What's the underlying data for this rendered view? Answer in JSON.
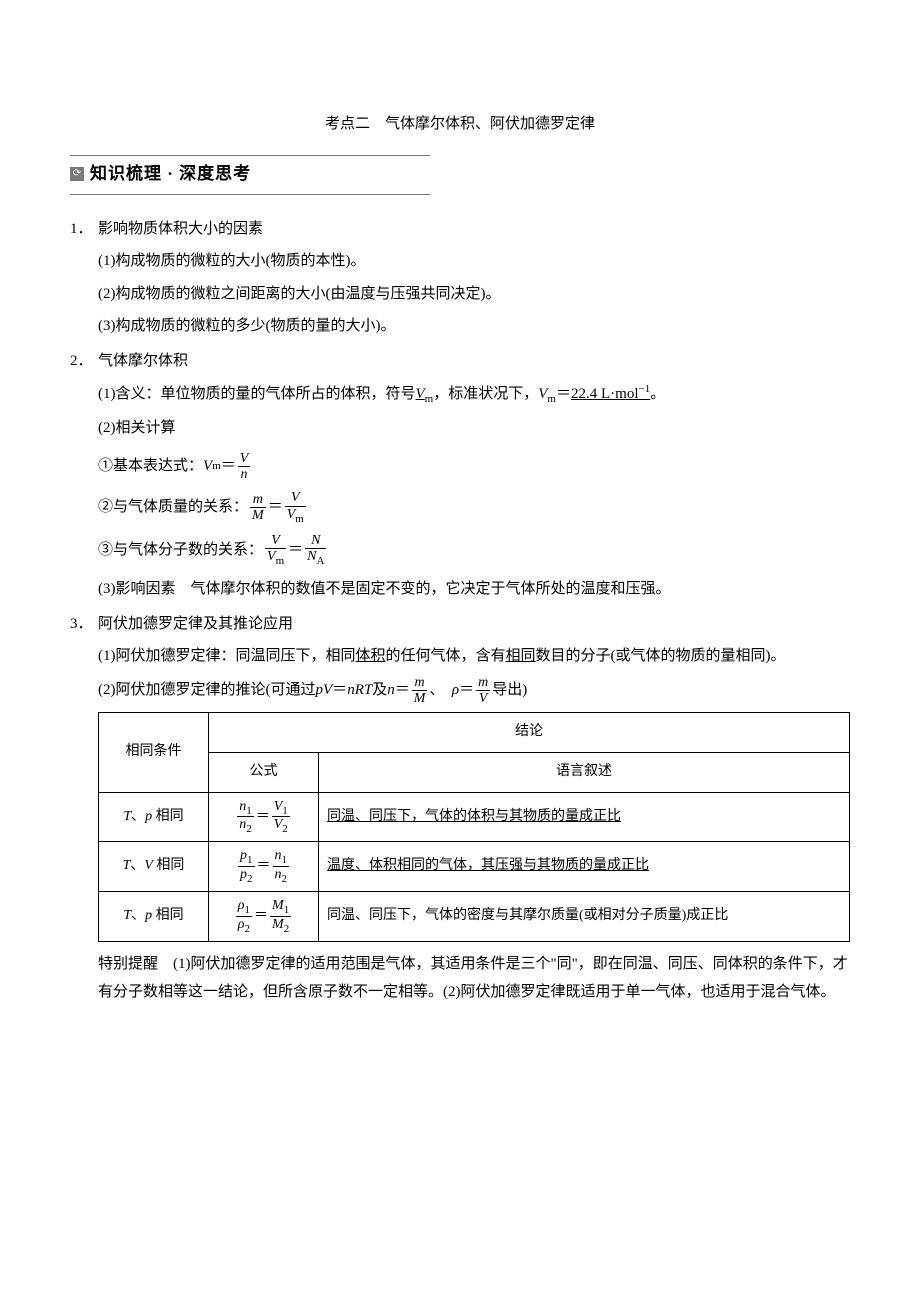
{
  "colors": {
    "text": "#000000",
    "bg": "#ffffff",
    "rule": "#7a7a7a",
    "icon_bg": "#7a7a7a",
    "icon_fg": "#ffffff"
  },
  "title": "考点二　气体摩尔体积、阿伏加德罗定律",
  "section_header": "知识梳理 · 深度思考",
  "s1": {
    "num": "1．",
    "heading": "影响物质体积大小的因素",
    "p1": "(1)构成物质的微粒的大小(物质的本性)。",
    "p2": "(2)构成物质的微粒之间距离的大小(由温度与压强共同决定)。",
    "p3": "(3)构成物质的微粒的多少(物质的量的大小)。"
  },
  "s2": {
    "num": "2．",
    "heading": "气体摩尔体积",
    "p1_a": "(1)含义：单位物质的量的气体所占的体积，符号",
    "p1_sym": "V",
    "p1_sub": "m",
    "p1_b": "，标准状况下，",
    "p1_sym2": "V",
    "p1_sub2": "m",
    "p1_eq": "＝",
    "p1_val": "22.4 L·mol",
    "p1_exp": "−1",
    "p1_end": "。",
    "p2": "(2)相关计算",
    "eq1_label": "①基本表达式：",
    "eq1_lhs_sym": "V",
    "eq1_lhs_sub": "m",
    "eq1_eq": "＝",
    "eq1_num": "V",
    "eq1_den": "n",
    "eq2_label": "②与气体质量的关系：",
    "eq2_l_num": "m",
    "eq2_l_den": "M",
    "eq2_eq": "＝",
    "eq2_r_num": "V",
    "eq2_r_den_sym": "V",
    "eq2_r_den_sub": "m",
    "eq3_label": "③与气体分子数的关系：",
    "eq3_l_num": "V",
    "eq3_l_den_sym": "V",
    "eq3_l_den_sub": "m",
    "eq3_eq": "＝",
    "eq3_r_num": "N",
    "eq3_r_den_sym": "N",
    "eq3_r_den_sub": "A",
    "p3": "(3)影响因素　气体摩尔体积的数值不是固定不变的，它决定于气体所处的温度和压强。"
  },
  "s3": {
    "num": "3．",
    "heading": "阿伏加德罗定律及其推论应用",
    "p1_a": "(1)阿伏加德罗定律：同温同压下，相同",
    "p1_u1": "体积",
    "p1_b": "的任何气体，含有",
    "p1_u2": "相同",
    "p1_c": "数目的分子(或气体的物质的量相同)。",
    "p2_a": "(2)阿伏加德罗定律的推论(可通过 ",
    "p2_eq1_l": "pV",
    "p2_eq1_eq": "＝",
    "p2_eq1_r": "nRT",
    "p2_and": " 及 ",
    "p2_eq2_l": "n",
    "p2_eq2_eq": "＝",
    "p2_eq2_num": "m",
    "p2_eq2_den": "M",
    "p2_sep": "、　",
    "p2_eq3_l": "ρ",
    "p2_eq3_eq": "＝",
    "p2_eq3_num": "m",
    "p2_eq3_den": "V",
    "p2_b": "导出)"
  },
  "table": {
    "h_cond": "相同条件",
    "h_result": "结论",
    "h_formula": "公式",
    "h_desc": "语言叙述",
    "rows": [
      {
        "cond_a": "T",
        "cond_sep": "、",
        "cond_b": "p",
        "cond_c": " 相同",
        "f_l_num_sym": "n",
        "f_l_num_sub": "1",
        "f_l_den_sym": "n",
        "f_l_den_sub": "2",
        "f_eq": "＝",
        "f_r_num_sym": "V",
        "f_r_num_sub": "1",
        "f_r_den_sym": "V",
        "f_r_den_sub": "2",
        "desc": "同温、同压下，气体的体积与其物质的量成正比",
        "desc_underline": true
      },
      {
        "cond_a": "T",
        "cond_sep": "、",
        "cond_b": "V",
        "cond_c": " 相同",
        "f_l_num_sym": "p",
        "f_l_num_sub": "1",
        "f_l_den_sym": "p",
        "f_l_den_sub": "2",
        "f_eq": "＝",
        "f_r_num_sym": "n",
        "f_r_num_sub": "1",
        "f_r_den_sym": "n",
        "f_r_den_sub": "2",
        "desc": "温度、体积相同的气体，其压强与其物质的量成正比",
        "desc_underline": true
      },
      {
        "cond_a": "T",
        "cond_sep": "、",
        "cond_b": "p",
        "cond_c": " 相同",
        "f_l_num_sym": "ρ",
        "f_l_num_sub": "1",
        "f_l_den_sym": "ρ",
        "f_l_den_sub": "2",
        "f_eq": "＝",
        "f_r_num_sym": "M",
        "f_r_num_sub": "1",
        "f_r_den_sym": "M",
        "f_r_den_sub": "2",
        "desc": "同温、同压下，气体的密度与其摩尔质量(或相对分子质量)成正比",
        "desc_underline": false
      }
    ]
  },
  "note": "特别提醒　(1)阿伏加德罗定律的适用范围是气体，其适用条件是三个\"同\"，即在同温、同压、同体积的条件下，才有分子数相等这一结论，但所含原子数不一定相等。(2)阿伏加德罗定律既适用于单一气体，也适用于混合气体。"
}
